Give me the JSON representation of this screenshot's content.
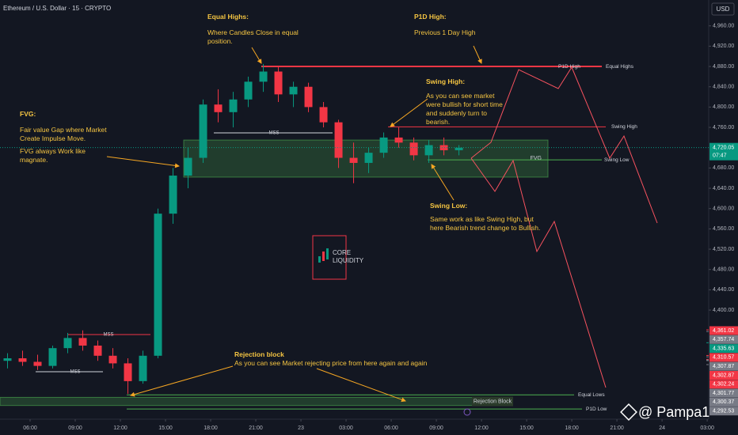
{
  "chart_data": {
    "type": "candlestick",
    "title": "Ethereum / U.S. Dollar · 15 · CRYPTO",
    "currency": "USD",
    "up_color": "#089981",
    "down_color": "#f23645",
    "xlim": [
      -2,
      45.1
    ],
    "ylim": [
      4185,
      5011
    ],
    "xticks": [
      {
        "value": 0,
        "label": "06:00"
      },
      {
        "value": 3,
        "label": "09:00"
      },
      {
        "value": 6,
        "label": "12:00"
      },
      {
        "value": 9,
        "label": "15:00"
      },
      {
        "value": 12,
        "label": "18:00"
      },
      {
        "value": 15,
        "label": "21:00"
      },
      {
        "value": 18,
        "label": "23"
      },
      {
        "value": 21,
        "label": "03:00"
      },
      {
        "value": 24,
        "label": "06:00"
      },
      {
        "value": 27,
        "label": "09:00"
      },
      {
        "value": 30,
        "label": "12:00"
      },
      {
        "value": 33,
        "label": "15:00"
      },
      {
        "value": 36,
        "label": "18:00"
      },
      {
        "value": 39,
        "label": "21:00"
      },
      {
        "value": 42,
        "label": "24"
      },
      {
        "value": 45,
        "label": "03:00"
      }
    ],
    "yticks": [
      {
        "value": 4960,
        "label": "4,960.00"
      },
      {
        "value": 4920,
        "label": "4,920.00"
      },
      {
        "value": 4880,
        "label": "4,880.00"
      },
      {
        "value": 4840,
        "label": "4,840.00"
      },
      {
        "value": 4800,
        "label": "4,800.00"
      },
      {
        "value": 4760,
        "label": "4,760.00"
      },
      {
        "value": 4680,
        "label": "4,680.00"
      },
      {
        "value": 4640,
        "label": "4,640.00"
      },
      {
        "value": 4600,
        "label": "4,600.00"
      },
      {
        "value": 4560,
        "label": "4,560.00"
      },
      {
        "value": 4520,
        "label": "4,520.00"
      },
      {
        "value": 4480,
        "label": "4,480.00"
      },
      {
        "value": 4440,
        "label": "4,440.00"
      },
      {
        "value": 4400,
        "label": "4,400.00"
      }
    ],
    "candles": [
      {
        "x": -1.5,
        "open": 4300,
        "high": 4315,
        "low": 4285,
        "close": 4305
      },
      {
        "x": -0.5,
        "open": 4305,
        "high": 4320,
        "low": 4290,
        "close": 4298
      },
      {
        "x": 0.5,
        "open": 4298,
        "high": 4312,
        "low": 4282,
        "close": 4290
      },
      {
        "x": 1.5,
        "open": 4290,
        "high": 4330,
        "low": 4285,
        "close": 4325
      },
      {
        "x": 2.5,
        "open": 4325,
        "high": 4355,
        "low": 4315,
        "close": 4345
      },
      {
        "x": 3.5,
        "open": 4345,
        "high": 4360,
        "low": 4320,
        "close": 4330
      },
      {
        "x": 4.5,
        "open": 4330,
        "high": 4340,
        "low": 4300,
        "close": 4310
      },
      {
        "x": 5.5,
        "open": 4310,
        "high": 4325,
        "low": 4285,
        "close": 4295
      },
      {
        "x": 6.5,
        "open": 4295,
        "high": 4305,
        "low": 4235,
        "close": 4260
      },
      {
        "x": 7.5,
        "open": 4260,
        "high": 4320,
        "low": 4255,
        "close": 4310
      },
      {
        "x": 8.5,
        "open": 4310,
        "high": 4600,
        "low": 4305,
        "close": 4590
      },
      {
        "x": 9.5,
        "open": 4590,
        "high": 4680,
        "low": 4570,
        "close": 4665
      },
      {
        "x": 10.5,
        "open": 4665,
        "high": 4720,
        "low": 4640,
        "close": 4700
      },
      {
        "x": 11.5,
        "open": 4700,
        "high": 4815,
        "low": 4690,
        "close": 4805
      },
      {
        "x": 12.5,
        "open": 4805,
        "high": 4835,
        "low": 4770,
        "close": 4790
      },
      {
        "x": 13.5,
        "open": 4790,
        "high": 4830,
        "low": 4760,
        "close": 4815
      },
      {
        "x": 14.5,
        "open": 4815,
        "high": 4860,
        "low": 4800,
        "close": 4850
      },
      {
        "x": 15.5,
        "open": 4850,
        "high": 4885,
        "low": 4830,
        "close": 4870
      },
      {
        "x": 16.5,
        "open": 4870,
        "high": 4880,
        "low": 4810,
        "close": 4825
      },
      {
        "x": 17.5,
        "open": 4825,
        "high": 4850,
        "low": 4800,
        "close": 4840
      },
      {
        "x": 18.5,
        "open": 4840,
        "high": 4848,
        "low": 4790,
        "close": 4800
      },
      {
        "x": 19.5,
        "open": 4800,
        "high": 4810,
        "low": 4760,
        "close": 4770
      },
      {
        "x": 20.5,
        "open": 4770,
        "high": 4775,
        "low": 4680,
        "close": 4700
      },
      {
        "x": 21.5,
        "open": 4700,
        "high": 4730,
        "low": 4650,
        "close": 4690
      },
      {
        "x": 22.5,
        "open": 4690,
        "high": 4720,
        "low": 4670,
        "close": 4710
      },
      {
        "x": 23.5,
        "open": 4710,
        "high": 4750,
        "low": 4700,
        "close": 4740
      },
      {
        "x": 24.5,
        "open": 4740,
        "high": 4760,
        "low": 4720,
        "close": 4730
      },
      {
        "x": 25.5,
        "open": 4730,
        "high": 4740,
        "low": 4695,
        "close": 4705
      },
      {
        "x": 26.5,
        "open": 4705,
        "high": 4735,
        "low": 4690,
        "close": 4725
      },
      {
        "x": 27.5,
        "open": 4725,
        "high": 4740,
        "low": 4705,
        "close": 4715
      },
      {
        "x": 28.5,
        "open": 4715,
        "high": 4725,
        "low": 4705,
        "close": 4720
      }
    ],
    "current_price": {
      "value": 4720.05,
      "label": "4,720.05",
      "countdown": "07:47",
      "color": "#089981"
    },
    "axis_labels": [
      {
        "value": 4361.02,
        "label": "4,361.02",
        "color": "#f23645"
      },
      {
        "value": 4357.74,
        "label": "4,357.74",
        "color": "#787b86"
      },
      {
        "value": 4335.63,
        "label": "4,335.63",
        "color": "#089981"
      },
      {
        "value": 4310.57,
        "label": "4,310.57",
        "color": "#f23645"
      },
      {
        "value": 4307.87,
        "label": "4,307.87",
        "color": "#787b86"
      },
      {
        "value": 4302.87,
        "label": "4,302.87",
        "color": "#f23645"
      },
      {
        "value": 4302.24,
        "label": "4,302.24",
        "color": "#f23645"
      },
      {
        "value": 4301.77,
        "label": "4,301.77",
        "color": "#787b86"
      },
      {
        "value": 4300.37,
        "label": "4,300.37",
        "color": "#787b86"
      },
      {
        "value": 4292.53,
        "label": "4,292.53",
        "color": "#787b86"
      }
    ],
    "levels": [
      {
        "label": "Equal Highs",
        "value": 4880,
        "color": "#f23645"
      },
      {
        "label": "P1D High",
        "value": 4880,
        "color": "#f23645"
      },
      {
        "label": "Swing High",
        "value": 4761,
        "color": "#f23645"
      },
      {
        "label": "Swing Low",
        "value": 4696,
        "color": "#4caf50"
      },
      {
        "label": "Equal Lows",
        "value": 4233,
        "color": "#4caf50"
      },
      {
        "label": "P1D Low",
        "value": 4205,
        "color": "#4caf50"
      }
    ],
    "zones": [
      {
        "label": "FVG",
        "low": 4662,
        "high": 4735,
        "color": "#4caf50"
      },
      {
        "label": "Rejection Block",
        "low": 4212,
        "high": 4228,
        "color": "#4caf50"
      }
    ],
    "mss_labels": [
      "MSS",
      "MSS",
      "MSS"
    ],
    "annotations": {
      "equal_highs_title": "Equal Highs:",
      "equal_highs_text": "Where Candles Close in equal position.",
      "p1d_high_title": "P1D High:",
      "p1d_high_text": "Previous 1 Day High",
      "fvg_title": "FVG:",
      "fvg_text1": "Fair value Gap where Market Create Impulse Move.",
      "fvg_text2": "FVG always Work like magnate.",
      "swing_high_title": "Swing High:",
      "swing_high_text": "As you can see market were bullish for short time and suddenly turn to bearish.",
      "swing_low_title": "Swing Low:",
      "swing_low_text": "Same work as like Swing High, but here Bearish trend change to Bullish.",
      "rejection_title": "Rejection block",
      "rejection_text": "As you can see Market rejecting price from here again and again"
    },
    "logo": {
      "line1": "CORE",
      "line2": "LIQUIDITY"
    },
    "watermark": "@ Pampa1"
  }
}
